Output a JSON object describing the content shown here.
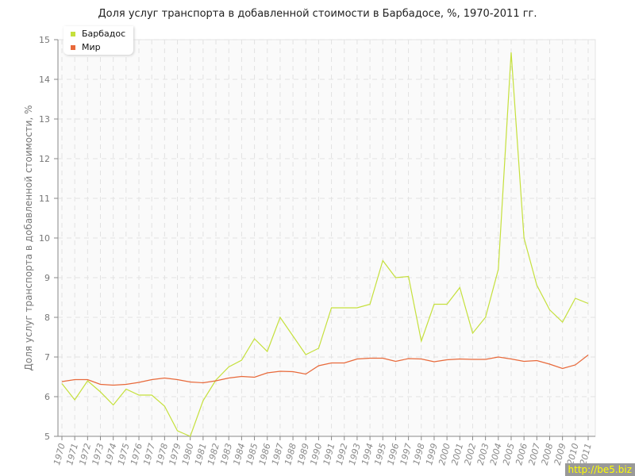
{
  "chart_data": {
    "type": "line",
    "title": "Доля услуг транспорта в добавленной стоимости в Барбадосе, %, 1970-2011 гг.",
    "ylabel": "Доля услуг транспорта в добавленной стоимости, %",
    "xlabel": "",
    "ylim": [
      5,
      15
    ],
    "yticks": [
      "5",
      "6",
      "7",
      "8",
      "9",
      "10",
      "11",
      "12",
      "13",
      "14",
      "15"
    ],
    "x": [
      1970,
      1971,
      1972,
      1973,
      1974,
      1975,
      1976,
      1977,
      1978,
      1979,
      1980,
      1981,
      1982,
      1983,
      1984,
      1985,
      1986,
      1987,
      1988,
      1989,
      1990,
      1991,
      1992,
      1993,
      1994,
      1995,
      1996,
      1997,
      1998,
      1999,
      2000,
      2001,
      2002,
      2003,
      2004,
      2005,
      2006,
      2007,
      2008,
      2009,
      2010,
      2011
    ],
    "grid": true,
    "legend_position": "top-left",
    "series": [
      {
        "name": "Барбадос",
        "color": "#c5e03c",
        "values": [
          6.33,
          5.92,
          6.4,
          6.12,
          5.79,
          6.19,
          6.04,
          6.04,
          5.76,
          5.14,
          5.0,
          5.9,
          6.42,
          6.75,
          6.92,
          7.46,
          7.14,
          8.0,
          7.53,
          7.06,
          7.22,
          8.24,
          8.24,
          8.24,
          8.33,
          9.43,
          9.0,
          9.03,
          7.4,
          8.33,
          8.33,
          8.75,
          7.6,
          8.0,
          9.21,
          14.68,
          10.0,
          8.81,
          8.19,
          7.88,
          8.48,
          8.35
        ]
      },
      {
        "name": "Мир",
        "color": "#e8693a",
        "values": [
          6.38,
          6.43,
          6.43,
          6.31,
          6.29,
          6.31,
          6.36,
          6.43,
          6.47,
          6.43,
          6.37,
          6.35,
          6.4,
          6.47,
          6.51,
          6.49,
          6.6,
          6.64,
          6.63,
          6.57,
          6.78,
          6.85,
          6.85,
          6.95,
          6.97,
          6.97,
          6.89,
          6.96,
          6.95,
          6.88,
          6.93,
          6.95,
          6.94,
          6.94,
          7.0,
          6.95,
          6.89,
          6.91,
          6.82,
          6.71,
          6.8,
          7.05
        ]
      }
    ]
  },
  "watermark": "http://be5.biz"
}
